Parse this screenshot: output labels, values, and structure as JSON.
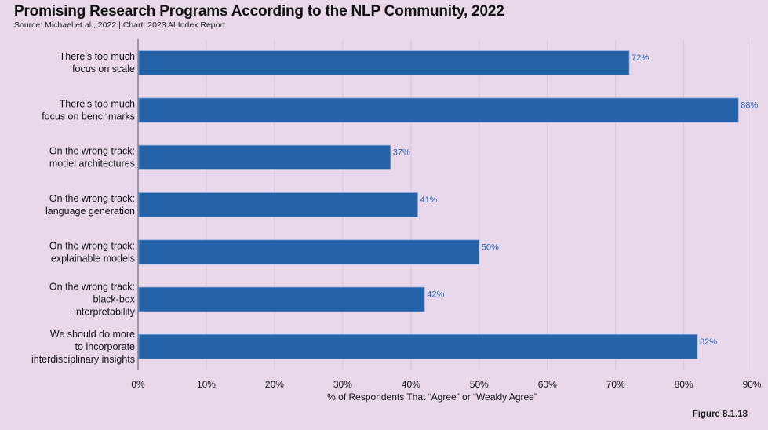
{
  "chart_data": {
    "type": "bar",
    "orientation": "horizontal",
    "title": "Promising Research Programs According to the NLP Community, 2022",
    "subtitle": "Source: Michael et al., 2022 | Chart: 2023 AI Index Report",
    "xlabel": "% of Respondents That “Agree” or “Weakly Agree”",
    "ylabel": "",
    "xlim": [
      0,
      92
    ],
    "x_ticks": [
      0,
      10,
      20,
      30,
      40,
      50,
      60,
      70,
      80,
      90
    ],
    "x_tick_labels": [
      "0%",
      "10%",
      "20%",
      "30%",
      "40%",
      "50%",
      "60%",
      "70%",
      "80%",
      "90%"
    ],
    "grid": true,
    "categories": [
      [
        "There’s too much",
        "focus on scale"
      ],
      [
        "There’s too much",
        "focus on benchmarks"
      ],
      [
        "On the wrong track:",
        "model architectures"
      ],
      [
        "On the wrong track:",
        "language generation"
      ],
      [
        "On the wrong track:",
        "explainable models"
      ],
      [
        "On the wrong track:",
        "black-box",
        "interpretability"
      ],
      [
        "We should do more",
        "to incorporate",
        "interdisciplinary insights"
      ]
    ],
    "values": [
      72,
      88,
      37,
      41,
      50,
      42,
      82
    ],
    "value_labels": [
      "72%",
      "88%",
      "37%",
      "41%",
      "50%",
      "42%",
      "82%"
    ],
    "bar_color": "#2563a9",
    "label_color": "#2a62b6"
  },
  "figure_label": "Figure 8.1.18"
}
